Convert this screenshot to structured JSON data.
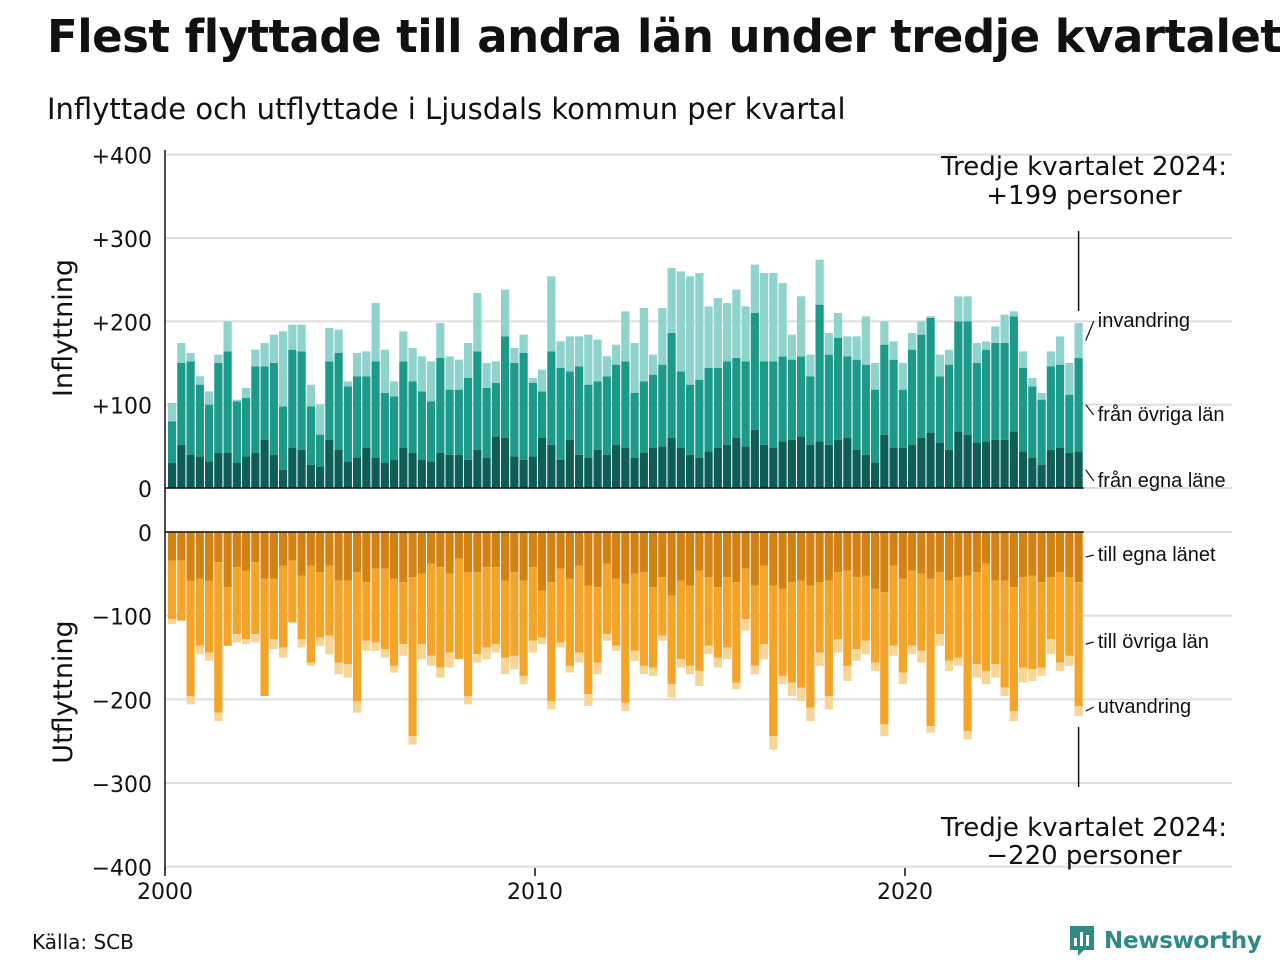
{
  "title": "Flest flyttade till andra län under tredje kvartalet",
  "subtitle": "Inflyttade och utflyttade i Ljusdals kommun per kvartal",
  "source": "Källa: SCB",
  "logo": {
    "text": "Newsworthy",
    "icon": "newsworthy-logo-icon",
    "color": "#2f8a86"
  },
  "annotations": {
    "top_line1": "Tredje kvartalet 2024:",
    "top_line2": "+199 personer",
    "bottom_line1": "Tredje kvartalet 2024:",
    "bottom_line2": "−220 personer"
  },
  "chart_data": {
    "type": "bar",
    "stacked": true,
    "x_label_ticks": [
      "2000",
      "2010",
      "2020"
    ],
    "y_tick_labels": [
      "+400",
      "+300",
      "+200",
      "+100",
      "0",
      "0",
      "−100",
      "−200",
      "−300",
      "−400"
    ],
    "panels": {
      "in": {
        "ylabel": "Inflyttning",
        "ylim": [
          0,
          400
        ]
      },
      "out": {
        "ylabel": "Utflyttning",
        "ylim": [
          -400,
          0
        ]
      }
    },
    "colors": {
      "fran_egna_lanet": "#0e5e56",
      "fran_ovriga_lan": "#1b9a8a",
      "invandring": "#8fd3cd",
      "till_egna_lanet": "#d38315",
      "till_ovriga_lan": "#f4a428",
      "utvandring": "#f8d595",
      "grid": "#dddddd"
    },
    "series_labels": {
      "invandring": "invandring",
      "fran_ovriga_lan": "från övriga län",
      "fran_egna_lanet": "från egna läne",
      "till_egna_lanet": "till egna länet",
      "till_ovriga_lan": "till övriga län",
      "utvandring": "utvandring"
    },
    "quarters_start": "2000-Q1",
    "quarters_end": "2024-Q3",
    "fran_egna_lanet": [
      30,
      52,
      40,
      38,
      32,
      42,
      42,
      30,
      38,
      42,
      58,
      40,
      22,
      48,
      46,
      28,
      26,
      58,
      46,
      32,
      36,
      48,
      36,
      30,
      34,
      48,
      42,
      34,
      32,
      42,
      40,
      40,
      34,
      46,
      36,
      62,
      60,
      38,
      34,
      38,
      60,
      52,
      34,
      58,
      40,
      36,
      46,
      40,
      52,
      48,
      36,
      42,
      48,
      50,
      60,
      48,
      40,
      36,
      44,
      48,
      52,
      60,
      50,
      70,
      52,
      48,
      56,
      58,
      62,
      52,
      56,
      52,
      58,
      60,
      46,
      40,
      30,
      64,
      48,
      48,
      52,
      60,
      66,
      54,
      46,
      68,
      64,
      54,
      56,
      58,
      58,
      68,
      44,
      36,
      28,
      46,
      48,
      42,
      44
    ],
    "fran_ovriga_lan": [
      50,
      98,
      112,
      86,
      68,
      108,
      122,
      74,
      70,
      104,
      88,
      110,
      76,
      118,
      118,
      70,
      38,
      94,
      116,
      90,
      98,
      86,
      116,
      84,
      76,
      104,
      86,
      82,
      72,
      114,
      78,
      78,
      98,
      118,
      84,
      64,
      122,
      112,
      128,
      88,
      56,
      112,
      110,
      82,
      106,
      88,
      82,
      94,
      96,
      104,
      78,
      86,
      88,
      98,
      126,
      92,
      84,
      94,
      100,
      96,
      100,
      96,
      102,
      140,
      100,
      104,
      102,
      96,
      96,
      82,
      164,
      108,
      122,
      98,
      108,
      108,
      88,
      108,
      106,
      70,
      114,
      124,
      138,
      80,
      102,
      132,
      136,
      96,
      110,
      116,
      116,
      138,
      100,
      86,
      78,
      100,
      100,
      70,
      112
    ],
    "invandring": [
      22,
      24,
      10,
      10,
      16,
      10,
      36,
      2,
      12,
      20,
      28,
      34,
      90,
      30,
      32,
      26,
      36,
      40,
      28,
      6,
      28,
      30,
      70,
      52,
      18,
      36,
      40,
      42,
      48,
      42,
      40,
      36,
      42,
      70,
      30,
      26,
      56,
      18,
      22,
      6,
      26,
      90,
      32,
      42,
      36,
      60,
      50,
      24,
      24,
      60,
      60,
      88,
      24,
      68,
      78,
      120,
      130,
      128,
      74,
      84,
      70,
      82,
      66,
      58,
      106,
      106,
      88,
      30,
      72,
      26,
      54,
      26,
      30,
      24,
      28,
      58,
      32,
      28,
      22,
      32,
      20,
      16,
      2,
      26,
      18,
      30,
      30,
      24,
      10,
      20,
      34,
      6,
      20,
      10,
      8,
      18,
      34,
      38,
      42
    ],
    "till_egna_lanet": [
      34,
      34,
      58,
      56,
      58,
      36,
      66,
      42,
      46,
      36,
      56,
      56,
      40,
      34,
      52,
      40,
      48,
      40,
      58,
      58,
      48,
      60,
      44,
      44,
      56,
      60,
      54,
      50,
      38,
      42,
      50,
      32,
      48,
      48,
      42,
      42,
      58,
      48,
      58,
      42,
      70,
      60,
      44,
      56,
      40,
      64,
      66,
      38,
      56,
      62,
      50,
      48,
      66,
      54,
      76,
      58,
      64,
      46,
      54,
      66,
      54,
      60,
      44,
      64,
      40,
      64,
      68,
      60,
      58,
      64,
      60,
      58,
      48,
      46,
      54,
      52,
      68,
      72,
      40,
      56,
      46,
      50,
      56,
      48,
      58,
      54,
      52,
      48,
      38,
      58,
      58,
      66,
      54,
      52,
      60,
      54,
      48,
      54,
      60
    ],
    "till_ovriga_lan": [
      70,
      72,
      138,
      80,
      86,
      180,
      70,
      80,
      82,
      86,
      140,
      72,
      98,
      74,
      76,
      116,
      78,
      84,
      98,
      100,
      154,
      70,
      88,
      96,
      104,
      74,
      190,
      84,
      110,
      120,
      94,
      120,
      148,
      98,
      96,
      92,
      92,
      100,
      114,
      88,
      56,
      142,
      88,
      104,
      104,
      130,
      90,
      84,
      80,
      142,
      92,
      112,
      96,
      70,
      106,
      94,
      96,
      120,
      82,
      84,
      84,
      120,
      60,
      96,
      94,
      180,
      104,
      120,
      128,
      146,
      84,
      138,
      80,
      114,
      86,
      78,
      88,
      158,
      96,
      112,
      90,
      92,
      176,
      74,
      96,
      96,
      186,
      110,
      128,
      100,
      128,
      148,
      108,
      112,
      102,
      74,
      108,
      94,
      148
    ],
    "utvandring": [
      6,
      0,
      10,
      10,
      10,
      10,
      0,
      10,
      6,
      10,
      0,
      12,
      12,
      0,
      10,
      4,
      10,
      22,
      14,
      16,
      14,
      12,
      10,
      10,
      8,
      14,
      10,
      18,
      12,
      12,
      18,
      0,
      10,
      10,
      14,
      10,
      20,
      16,
      10,
      14,
      8,
      10,
      6,
      8,
      12,
      14,
      14,
      8,
      6,
      10,
      12,
      10,
      10,
      6,
      16,
      10,
      10,
      18,
      10,
      12,
      14,
      8,
      14,
      10,
      18,
      16,
      10,
      16,
      16,
      16,
      16,
      16,
      16,
      18,
      14,
      16,
      10,
      14,
      12,
      14,
      10,
      14,
      8,
      14,
      12,
      10,
      10,
      16,
      16,
      16,
      10,
      12,
      18,
      14,
      10,
      18,
      10,
      12,
      12
    ]
  }
}
